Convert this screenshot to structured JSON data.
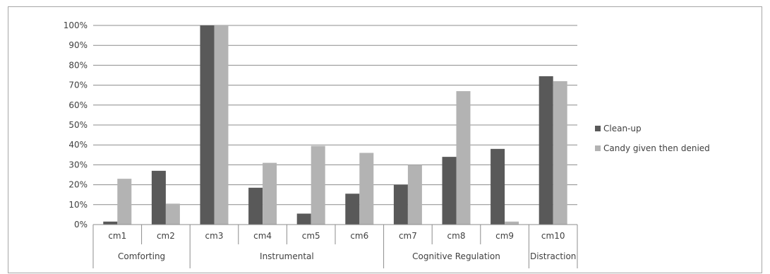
{
  "chart_data": {
    "type": "bar",
    "categories": [
      "cm1",
      "cm2",
      "cm3",
      "cm4",
      "cm5",
      "cm6",
      "cm7",
      "cm8",
      "cm9",
      "cm10"
    ],
    "groups": [
      {
        "label": "Comforting",
        "categories": [
          "cm1",
          "cm2"
        ]
      },
      {
        "label": "Instrumental",
        "categories": [
          "cm3",
          "cm4",
          "cm5",
          "cm6"
        ]
      },
      {
        "label": "Cognitive Regulation",
        "categories": [
          "cm7",
          "cm8",
          "cm9"
        ]
      },
      {
        "label": "Distraction",
        "categories": [
          "cm10"
        ]
      }
    ],
    "series": [
      {
        "name": "Clean-up",
        "color": "#595959",
        "values": [
          1.5,
          27,
          100,
          18.5,
          5.5,
          15.5,
          20,
          34,
          38,
          74.5
        ]
      },
      {
        "name": "Candy given then denied",
        "color": "#b3b3b3",
        "values": [
          23,
          10.5,
          100,
          31,
          39.5,
          36,
          30,
          67,
          1.5,
          72
        ]
      }
    ],
    "yticks": [
      "0%",
      "10%",
      "20%",
      "30%",
      "40%",
      "50%",
      "60%",
      "70%",
      "80%",
      "90%",
      "100%"
    ],
    "ylim": [
      0,
      100
    ],
    "grid": true,
    "legend": "right",
    "gridColor": "#8c8c8c",
    "axisColor": "#8c8c8c"
  }
}
